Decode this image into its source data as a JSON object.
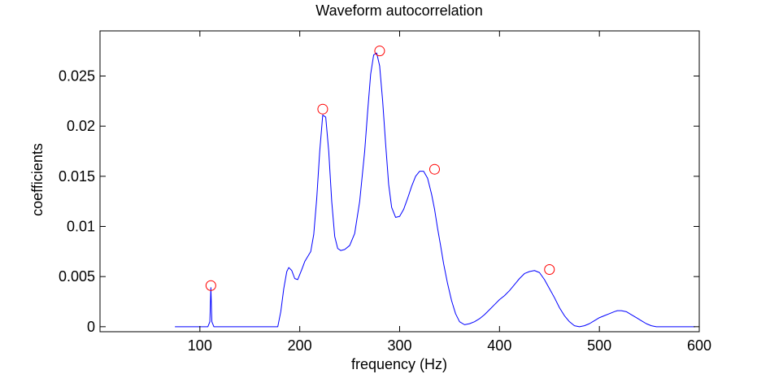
{
  "chart_data": {
    "type": "line",
    "title": "Waveform autocorrelation",
    "xlabel": "frequency (Hz)",
    "ylabel": "coefficients",
    "xlim": [
      0,
      600
    ],
    "ylim": [
      -0.0005,
      0.0295
    ],
    "xticks": [
      100,
      200,
      300,
      400,
      500,
      600
    ],
    "xtick_labels": [
      "100",
      "200",
      "300",
      "400",
      "500",
      "600"
    ],
    "yticks": [
      0,
      0.005,
      0.01,
      0.015,
      0.02,
      0.025
    ],
    "ytick_labels": [
      "0",
      "0.005",
      "0.01",
      "0.015",
      "0.02",
      "0.025"
    ],
    "grid": false,
    "series": [
      {
        "color": "#0000ff",
        "x": [
          75,
          100,
          108,
          110,
          111,
          112,
          114,
          120,
          150,
          178,
          181,
          184,
          187,
          189,
          192,
          195,
          198,
          202,
          205,
          208,
          211,
          214,
          217,
          220,
          223,
          226,
          229,
          232,
          235,
          238,
          241,
          245,
          250,
          255,
          260,
          265,
          268,
          271,
          274,
          277,
          280,
          283,
          286,
          289,
          292,
          296,
          300,
          304,
          308,
          312,
          316,
          320,
          324,
          328,
          332,
          335,
          338,
          341,
          344,
          348,
          352,
          356,
          360,
          365,
          370,
          375,
          380,
          385,
          390,
          395,
          400,
          405,
          410,
          415,
          420,
          425,
          430,
          435,
          440,
          445,
          450,
          455,
          460,
          465,
          470,
          475,
          480,
          485,
          490,
          495,
          500,
          505,
          510,
          515,
          518,
          522,
          527,
          532,
          537,
          542,
          547,
          552,
          557,
          562,
          567,
          572,
          577,
          582,
          587,
          592,
          596
        ],
        "y": [
          0,
          0,
          0,
          0.0005,
          0.0039,
          0.0005,
          0,
          0,
          0,
          0,
          0.0015,
          0.0038,
          0.0055,
          0.0059,
          0.0056,
          0.0048,
          0.0047,
          0.0057,
          0.0065,
          0.007,
          0.0075,
          0.0092,
          0.0128,
          0.0175,
          0.0211,
          0.0209,
          0.0175,
          0.0125,
          0.009,
          0.0078,
          0.0076,
          0.0077,
          0.0081,
          0.0093,
          0.0125,
          0.0175,
          0.0215,
          0.0252,
          0.0271,
          0.0273,
          0.026,
          0.0225,
          0.0182,
          0.0142,
          0.0119,
          0.0109,
          0.011,
          0.0117,
          0.0128,
          0.014,
          0.015,
          0.0155,
          0.0155,
          0.0148,
          0.0132,
          0.0117,
          0.0098,
          0.0081,
          0.0063,
          0.0043,
          0.0026,
          0.0013,
          0.0005,
          0.0002,
          0.0003,
          0.0005,
          0.0008,
          0.0012,
          0.0017,
          0.0022,
          0.0027,
          0.0031,
          0.0036,
          0.0042,
          0.0048,
          0.0053,
          0.0055,
          0.0056,
          0.0054,
          0.0047,
          0.0038,
          0.0029,
          0.0019,
          0.0011,
          0.0005,
          0.0001,
          0,
          0.0001,
          0.0003,
          0.0006,
          0.0009,
          0.0011,
          0.0013,
          0.0015,
          0.0016,
          0.0016,
          0.0015,
          0.0012,
          0.0009,
          0.0006,
          0.0003,
          0.0001,
          0,
          0,
          0,
          0,
          0,
          0,
          0,
          0,
          0
        ]
      }
    ],
    "markers": {
      "shape": "circle",
      "color": "#ff0000",
      "points": [
        {
          "x": 111,
          "y": 0.0041
        },
        {
          "x": 223,
          "y": 0.0217
        },
        {
          "x": 280,
          "y": 0.0275
        },
        {
          "x": 335,
          "y": 0.0157
        },
        {
          "x": 450,
          "y": 0.0057
        }
      ]
    }
  }
}
